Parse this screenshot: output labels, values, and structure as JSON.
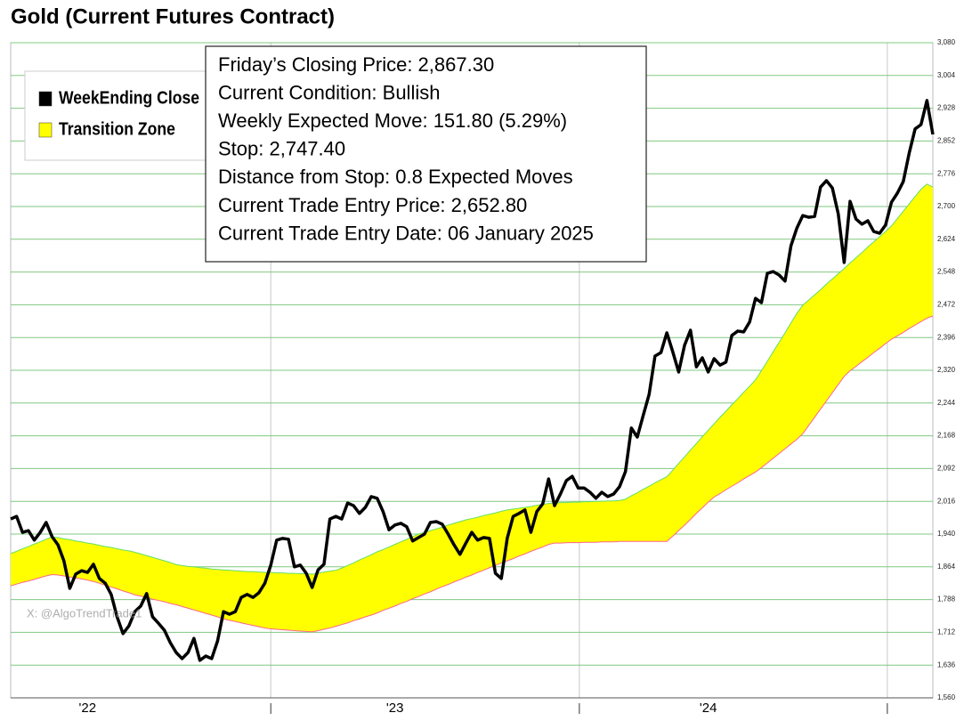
{
  "chart_data": {
    "type": "line",
    "title": "Gold (Current Futures Contract)",
    "info": [
      "Friday’s Closing Price: 2,867.30",
      "Current Condition: Bullish",
      "Weekly Expected Move: 151.80 (5.29%)",
      "Stop: 2,747.40",
      "Distance from Stop: 0.8 Expected Moves",
      "Current Trade Entry Price: 2,652.80",
      "Current Trade Entry Date: 06 January 2025"
    ],
    "watermark": "X: @AlgoTrendTrade1",
    "categories": [
      null,
      null,
      null,
      null,
      null,
      null,
      null,
      null,
      null,
      null,
      null,
      null,
      null,
      "'22",
      null,
      null,
      null,
      null,
      null,
      null,
      null,
      null,
      null,
      null,
      null,
      null,
      null,
      null,
      null,
      null,
      null,
      null,
      null,
      null,
      null,
      null,
      null,
      null,
      null,
      null,
      null,
      null,
      null,
      null,
      null,
      null,
      null,
      null,
      null,
      null,
      null,
      null,
      null,
      null,
      null,
      null,
      null,
      null,
      null,
      null,
      null,
      null,
      null,
      null,
      null,
      "'23",
      null,
      null,
      null,
      null,
      null,
      null,
      null,
      null,
      null,
      null,
      null,
      null,
      null,
      null,
      null,
      null,
      null,
      null,
      null,
      null,
      null,
      null,
      null,
      null,
      null,
      null,
      null,
      null,
      null,
      null,
      null,
      null,
      null,
      null,
      null,
      null,
      null,
      null,
      null,
      null,
      null,
      null,
      null,
      null,
      null,
      null,
      null,
      null,
      null,
      null,
      null,
      null,
      "'24",
      null,
      null,
      null,
      null,
      null,
      null,
      null,
      null,
      null,
      null,
      null,
      null,
      null,
      null,
      null,
      null,
      null,
      null,
      null,
      null,
      null,
      null,
      null,
      null,
      null,
      null,
      null,
      null,
      null,
      null,
      null,
      null,
      null,
      null,
      null,
      null,
      null,
      null
    ],
    "series": [
      {
        "name": "WeekEnding Close",
        "color": "#000000",
        "values": [
          1975,
          1981,
          1944,
          1948,
          1926,
          1944,
          1967,
          1934,
          1915,
          1878,
          1814,
          1847,
          1855,
          1851,
          1870,
          1837,
          1826,
          1800,
          1748,
          1709,
          1727,
          1760,
          1773,
          1802,
          1748,
          1733,
          1717,
          1688,
          1665,
          1651,
          1665,
          1698,
          1647,
          1657,
          1651,
          1692,
          1760,
          1754,
          1760,
          1793,
          1800,
          1793,
          1804,
          1826,
          1868,
          1926,
          1930,
          1928,
          1864,
          1868,
          1849,
          1816,
          1857,
          1870,
          1975,
          1981,
          1975,
          2012,
          2006,
          1988,
          2002,
          2027,
          2023,
          1992,
          1950,
          1961,
          1965,
          1957,
          1924,
          1932,
          1940,
          1967,
          1969,
          1963,
          1940,
          1915,
          1893,
          1919,
          1944,
          1926,
          1932,
          1930,
          1849,
          1837,
          1930,
          1981,
          1988,
          1996,
          1944,
          1992,
          2010,
          2068,
          2006,
          2033,
          2064,
          2074,
          2047,
          2047,
          2037,
          2023,
          2037,
          2027,
          2033,
          2050,
          2085,
          2186,
          2165,
          2215,
          2264,
          2353,
          2361,
          2407,
          2363,
          2316,
          2378,
          2413,
          2328,
          2349,
          2316,
          2347,
          2332,
          2339,
          2401,
          2411,
          2409,
          2432,
          2487,
          2477,
          2545,
          2549,
          2541,
          2527,
          2609,
          2650,
          2679,
          2675,
          2677,
          2745,
          2760,
          2743,
          2683,
          2570,
          2712,
          2671,
          2659,
          2667,
          2642,
          2638,
          2657,
          2710,
          2731,
          2758,
          2824,
          2880,
          2890,
          2946,
          2867.3
        ]
      },
      {
        "name": "Transition Zone",
        "color": "#ffff00",
        "upper_color": "#66dd66",
        "lower_color": "#ff6688",
        "upper": [
          1895,
          1900,
          1906,
          1911,
          1917,
          1922,
          1928,
          1933,
          1932,
          1929,
          1927,
          1924,
          1922,
          1919,
          1917,
          1914,
          1911,
          1909,
          1906,
          1903,
          1901,
          1898,
          1894,
          1890,
          1886,
          1882,
          1878,
          1874,
          1869,
          1867,
          1865,
          1864,
          1862,
          1861,
          1859,
          1858,
          1857,
          1856,
          1855,
          1854,
          1853,
          1853,
          1852,
          1851,
          1851,
          1850,
          1850,
          1849,
          1849,
          1848,
          1848,
          1847,
          1849,
          1852,
          1854,
          1856,
          1861,
          1867,
          1873,
          1880,
          1886,
          1892,
          1899,
          1904,
          1910,
          1916,
          1922,
          1928,
          1934,
          1940,
          1944,
          1948,
          1952,
          1956,
          1961,
          1965,
          1969,
          1973,
          1976,
          1979,
          1983,
          1986,
          1989,
          1993,
          1996,
          1998,
          2000,
          2002,
          2004,
          2007,
          2009,
          2011,
          2012,
          2013,
          2013,
          2014,
          2014,
          2015,
          2015,
          2016,
          2016,
          2017,
          2017,
          2018,
          2021,
          2029,
          2036,
          2044,
          2051,
          2059,
          2066,
          2073,
          2088,
          2104,
          2119,
          2135,
          2150,
          2166,
          2181,
          2196,
          2211,
          2225,
          2240,
          2254,
          2269,
          2283,
          2298,
          2319,
          2341,
          2363,
          2385,
          2407,
          2430,
          2452,
          2471,
          2483,
          2495,
          2507,
          2520,
          2532,
          2544,
          2556,
          2569,
          2581,
          2593,
          2606,
          2618,
          2630,
          2642,
          2655,
          2672,
          2689,
          2706,
          2723,
          2740,
          2752,
          2745
        ],
        "lower": [
          1820,
          1824,
          1828,
          1831,
          1835,
          1839,
          1843,
          1846,
          1845,
          1843,
          1840,
          1838,
          1836,
          1833,
          1830,
          1826,
          1821,
          1817,
          1813,
          1808,
          1804,
          1799,
          1796,
          1793,
          1789,
          1786,
          1783,
          1779,
          1776,
          1772,
          1768,
          1764,
          1760,
          1756,
          1752,
          1748,
          1743,
          1740,
          1737,
          1734,
          1731,
          1728,
          1725,
          1722,
          1720,
          1719,
          1718,
          1717,
          1716,
          1715,
          1714,
          1713,
          1716,
          1719,
          1722,
          1726,
          1730,
          1734,
          1739,
          1743,
          1748,
          1752,
          1757,
          1763,
          1768,
          1773,
          1779,
          1784,
          1790,
          1795,
          1801,
          1806,
          1812,
          1818,
          1823,
          1829,
          1834,
          1840,
          1845,
          1851,
          1856,
          1862,
          1867,
          1873,
          1878,
          1883,
          1889,
          1894,
          1900,
          1905,
          1910,
          1916,
          1919,
          1919,
          1920,
          1920,
          1920,
          1921,
          1921,
          1921,
          1922,
          1922,
          1922,
          1923,
          1923,
          1923,
          1923,
          1923,
          1923,
          1923,
          1923,
          1923,
          1935,
          1948,
          1961,
          1974,
          1988,
          2001,
          2014,
          2026,
          2034,
          2043,
          2051,
          2059,
          2068,
          2076,
          2084,
          2094,
          2105,
          2116,
          2127,
          2138,
          2149,
          2160,
          2173,
          2192,
          2211,
          2230,
          2249,
          2268,
          2287,
          2306,
          2319,
          2329,
          2340,
          2350,
          2361,
          2371,
          2382,
          2392,
          2400,
          2408,
          2417,
          2425,
          2433,
          2441,
          2446
        ]
      }
    ],
    "ylim": [
      1560,
      3080
    ],
    "yticks": [
      {
        "value": 1560,
        "label": "1,560"
      },
      {
        "value": 1636,
        "label": "1,636"
      },
      {
        "value": 1712,
        "label": "1,712"
      },
      {
        "value": 1788,
        "label": "1,788"
      },
      {
        "value": 1864,
        "label": "1,864"
      },
      {
        "value": 1940,
        "label": "1,940"
      },
      {
        "value": 2016,
        "label": "2,016"
      },
      {
        "value": 2092,
        "label": "2,092"
      },
      {
        "value": 2168,
        "label": "2,168"
      },
      {
        "value": 2244,
        "label": "2,244"
      },
      {
        "value": 2320,
        "label": "2,320"
      },
      {
        "value": 2396,
        "label": "2,396"
      },
      {
        "value": 2472,
        "label": "2,472"
      },
      {
        "value": 2548,
        "label": "2,548"
      },
      {
        "value": 2624,
        "label": "2,624"
      },
      {
        "value": 2700,
        "label": "2,700"
      },
      {
        "value": 2776,
        "label": "2,776"
      },
      {
        "value": 2852,
        "label": "2,852"
      },
      {
        "value": 2928,
        "label": "2,928"
      },
      {
        "value": 3004,
        "label": "3,004"
      },
      {
        "value": 3080,
        "label": "3,080"
      }
    ],
    "grid": true,
    "grid_color": "#80c880",
    "legend": "upper-left"
  }
}
